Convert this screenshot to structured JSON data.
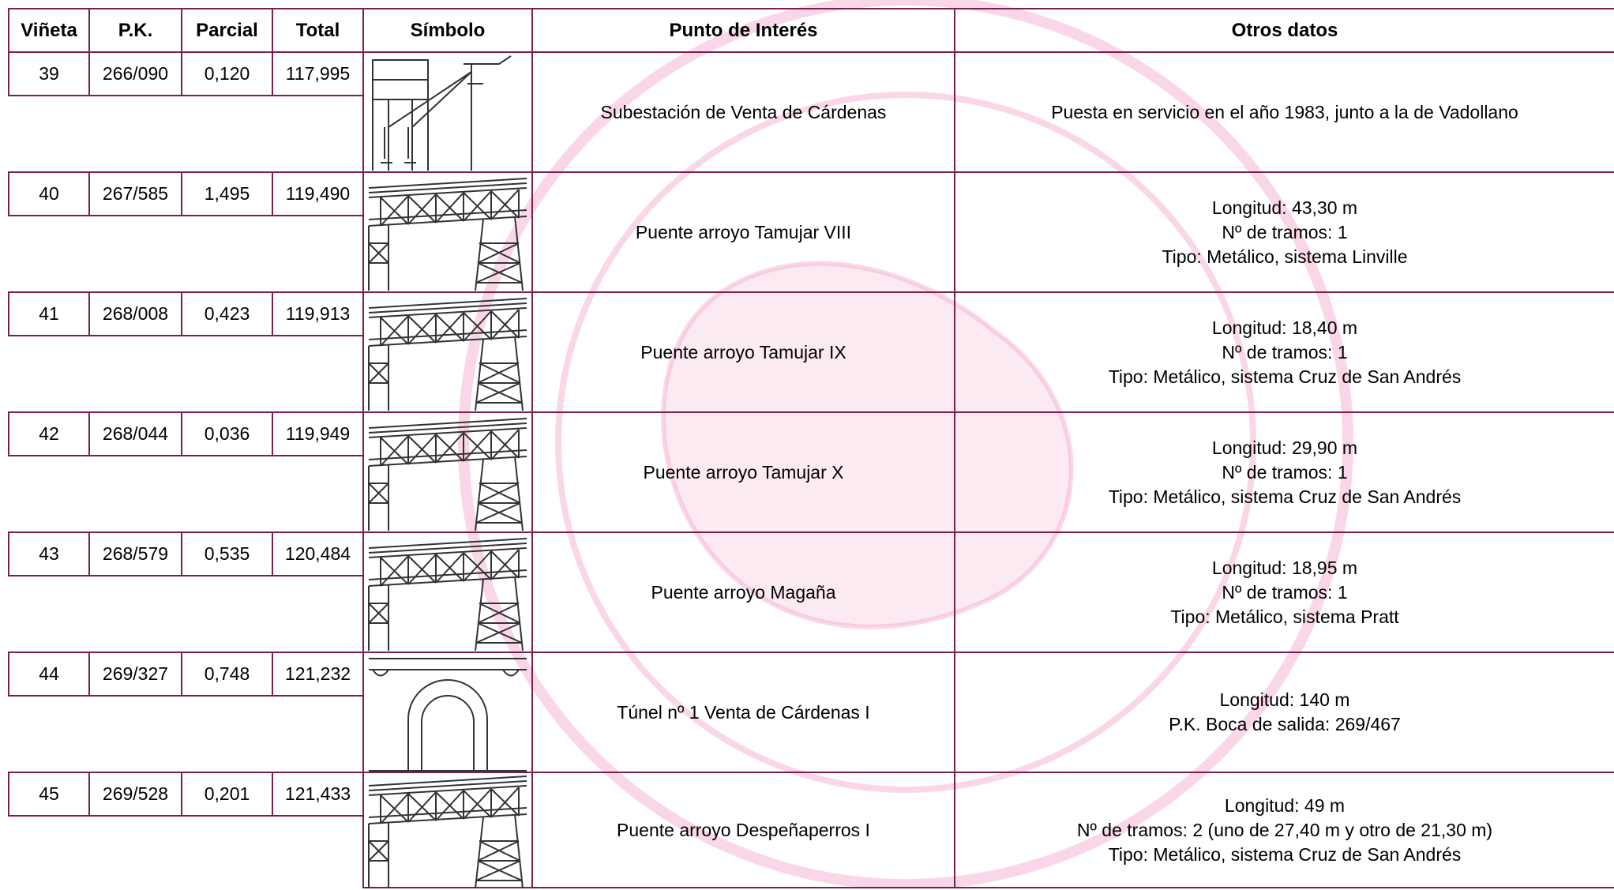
{
  "table": {
    "header": [
      "Viñeta",
      "P.K.",
      "Parcial",
      "Total",
      "Símbolo",
      "Punto de Interés",
      "Otros datos"
    ],
    "rows": [
      {
        "vineta": "39",
        "pk": "266/090",
        "parcial": "0,120",
        "total": "117,995",
        "punto": "Subestación de Venta de Cárdenas",
        "otros": [
          "Puesta en servicio en el año 1983, junto a la de Vadollano"
        ]
      },
      {
        "vineta": "40",
        "pk": "267/585",
        "parcial": "1,495",
        "total": "119,490",
        "punto": "Puente arroyo Tamujar VIII",
        "otros": [
          "Longitud: 43,30 m",
          "Nº de tramos: 1",
          "Tipo: Metálico, sistema Linville"
        ]
      },
      {
        "vineta": "41",
        "pk": "268/008",
        "parcial": "0,423",
        "total": "119,913",
        "punto": "Puente arroyo Tamujar IX",
        "otros": [
          "Longitud: 18,40 m",
          "Nº de tramos: 1",
          "Tipo: Metálico, sistema Cruz de San Andrés"
        ]
      },
      {
        "vineta": "42",
        "pk": "268/044",
        "parcial": "0,036",
        "total": "119,949",
        "punto": "Puente arroyo Tamujar X",
        "otros": [
          "Longitud: 29,90 m",
          "Nº de tramos: 1",
          "Tipo: Metálico, sistema Cruz de San Andrés"
        ]
      },
      {
        "vineta": "43",
        "pk": "268/579",
        "parcial": "0,535",
        "total": "120,484",
        "punto": "Puente arroyo Magaña",
        "otros": [
          "Longitud: 18,95 m",
          "Nº de tramos: 1",
          "Tipo: Metálico, sistema Pratt"
        ]
      },
      {
        "vineta": "44",
        "pk": "269/327",
        "parcial": "0,748",
        "total": "121,232",
        "punto": "Túnel nº 1 Venta de Cárdenas I",
        "otros": [
          "Longitud: 140 m",
          "P.K. Boca de salida: 269/467"
        ]
      },
      {
        "vineta": "45",
        "pk": "269/528",
        "parcial": "0,201",
        "total": "121,433",
        "punto": "Puente arroyo Despeñaperros I",
        "otros": [
          "Longitud: 49 m",
          "Nº de tramos: 2 (uno de 27,40 m y otro de 21,30 m)",
          "Tipo: Metálico, sistema Cruz de San Andrés"
        ]
      }
    ]
  }
}
